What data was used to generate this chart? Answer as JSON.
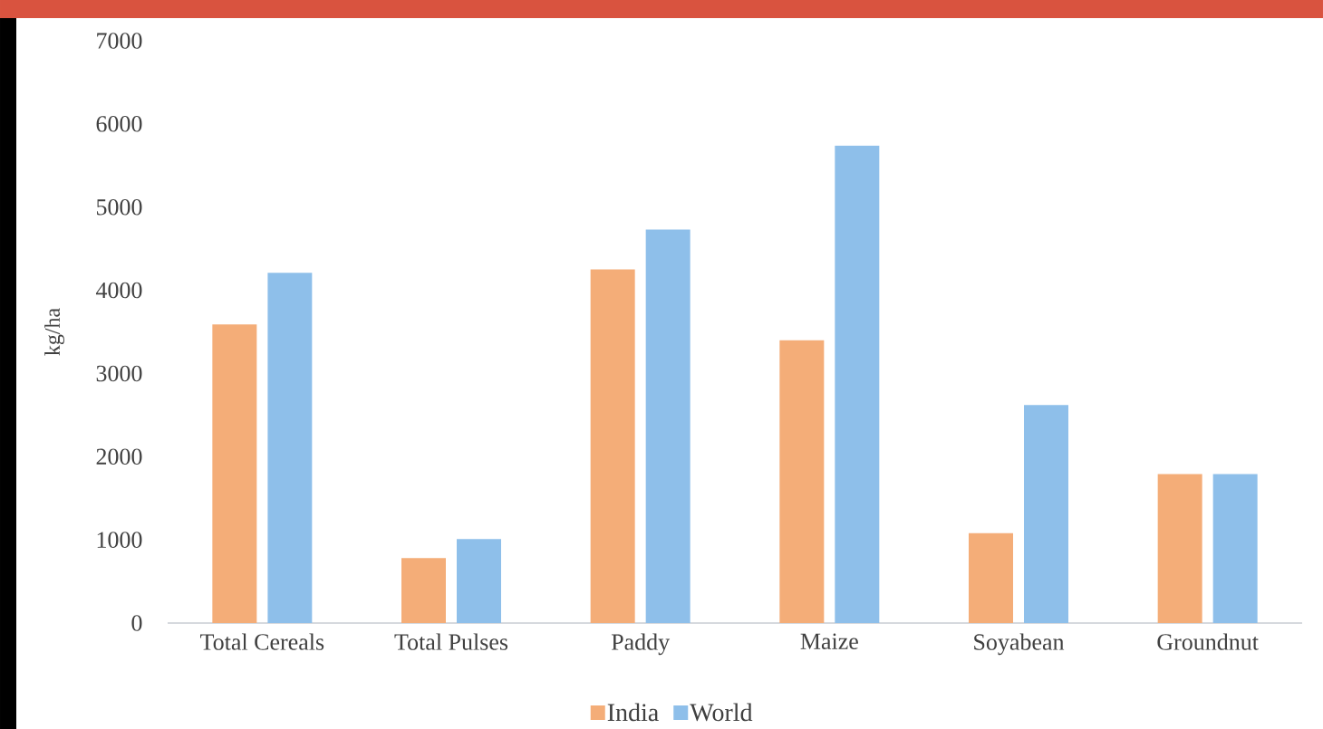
{
  "chart_data": {
    "type": "bar",
    "categories": [
      "Total Cereals",
      "Total Pulses",
      "Paddy",
      "Maize",
      "Soyabean",
      "Groundnut"
    ],
    "ylabel": "kg/ha",
    "ylim": [
      0,
      7000
    ],
    "yticks": [
      0,
      1000,
      2000,
      3000,
      4000,
      5000,
      6000,
      7000
    ],
    "legend": "bottom",
    "series": [
      {
        "name": "India",
        "color": "#f4ad78",
        "values": [
          3590,
          780,
          4250,
          3400,
          1080,
          1790
        ]
      },
      {
        "name": "World",
        "color": "#8ebfea",
        "values": [
          4210,
          1010,
          4730,
          5740,
          2620,
          1790
        ]
      }
    ]
  }
}
